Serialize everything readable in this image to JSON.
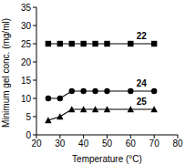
{
  "chart_data": {
    "type": "line",
    "xlabel": "Temperature (°C)",
    "ylabel": "Minimum gel conc. (mg/ml)",
    "x": [
      25,
      30,
      35,
      40,
      45,
      50,
      60,
      70
    ],
    "series": [
      {
        "name": "22",
        "color": "#000000",
        "marker": "square",
        "values": [
          25,
          25,
          25,
          25,
          25,
          25,
          25,
          25
        ]
      },
      {
        "name": "24",
        "color": "#000000",
        "marker": "circle",
        "values": [
          10,
          10,
          12,
          12,
          12,
          12,
          12,
          12
        ]
      },
      {
        "name": "25",
        "color": "#000000",
        "marker": "triangle",
        "values": [
          4,
          5,
          7,
          7,
          7,
          7,
          7,
          7
        ]
      }
    ],
    "xlim": [
      20,
      80
    ],
    "xticks": [
      20,
      30,
      40,
      50,
      60,
      70,
      80
    ],
    "ylim": [
      0,
      35
    ],
    "yticks": [
      0,
      5,
      10,
      15,
      20,
      25,
      30,
      35
    ]
  }
}
